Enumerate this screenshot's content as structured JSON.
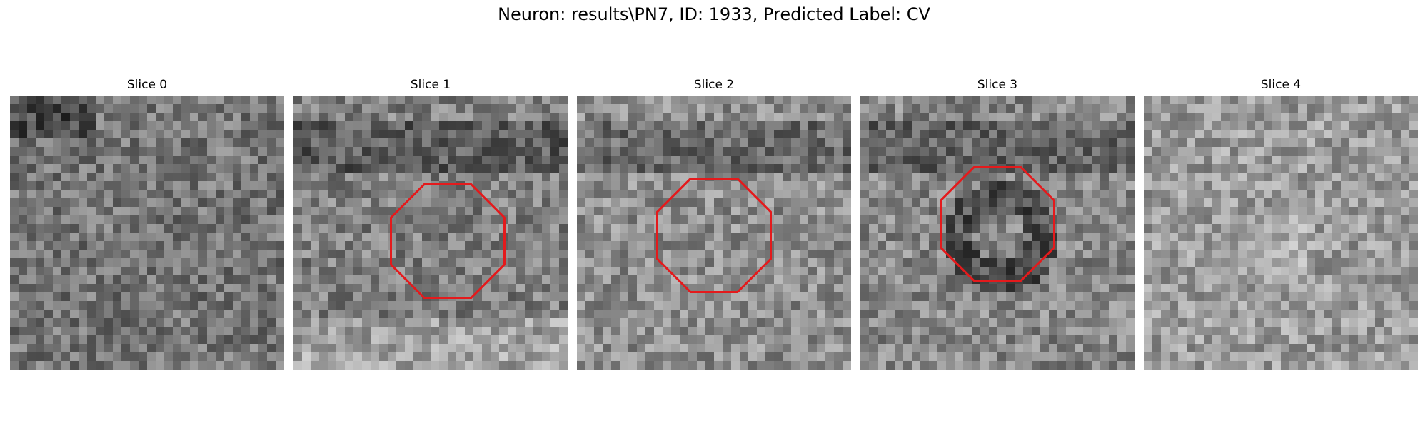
{
  "figure": {
    "title": "Neuron: results\\PN7, ID: 1933, Predicted Label: CV"
  },
  "slices": [
    {
      "label": "Slice 0",
      "mean_gray": 118,
      "dark_top_left": true,
      "overlay": false
    },
    {
      "label": "Slice 1",
      "mean_gray": 128,
      "dark_top_band": true,
      "bright_bottom": true,
      "overlay": true
    },
    {
      "label": "Slice 2",
      "mean_gray": 142,
      "dark_top_band": true,
      "overlay": true
    },
    {
      "label": "Slice 3",
      "mean_gray": 135,
      "dark_top_band": true,
      "dark_ring": true,
      "overlay": true
    },
    {
      "label": "Slice 4",
      "mean_gray": 155,
      "bright_center": true,
      "overlay": false
    }
  ],
  "overlay_color": "#e41a1c",
  "grid_size": 32
}
